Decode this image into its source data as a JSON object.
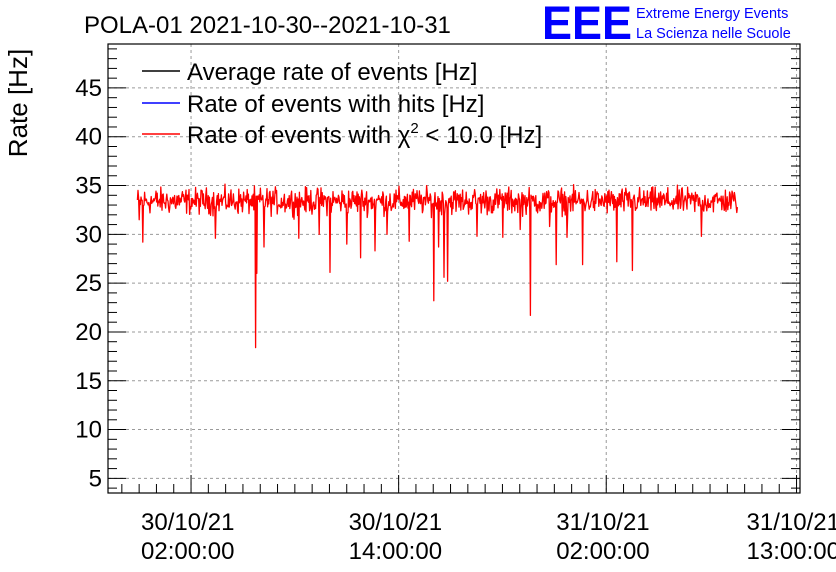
{
  "title": "POLA-01 2021-10-30--2021-10-31",
  "logo": {
    "mark": "EEE",
    "line1": "Extreme Energy Events",
    "line2": "La Scienza nelle Scuole",
    "color": "#0000ff"
  },
  "chart_data": {
    "type": "line",
    "title": "POLA-01 2021-10-30--2021-10-31",
    "ylabel": "Rate [Hz]",
    "xlabel": "",
    "ylim": [
      3.5,
      49.5
    ],
    "xlim_hours": [
      -4.8,
      35.2
    ],
    "grid": true,
    "legend": "top-left",
    "y_ticks": [
      5,
      10,
      15,
      20,
      25,
      30,
      35,
      40,
      45
    ],
    "x_ticks": [
      {
        "hours": 0,
        "date": "30/10/21",
        "time": "02:00:00"
      },
      {
        "hours": 12,
        "date": "30/10/21",
        "time": "14:00:00"
      },
      {
        "hours": 24,
        "date": "31/10/21",
        "time": "02:00:00"
      },
      {
        "hours": 35,
        "date": "31/10/21",
        "time": "13:00:00"
      }
    ],
    "legend_entries": [
      {
        "label": "Average rate of events [Hz]",
        "color": "#000000"
      },
      {
        "label": "Rate of events with hits [Hz]",
        "color": "#0000ff"
      },
      {
        "label_prefix": "Rate of events with ",
        "label_symbol": "χ",
        "label_sup": "2",
        "label_suffix": " < 10.0 [Hz]",
        "color": "#ff0000"
      }
    ],
    "series": [
      {
        "name": "Rate of events with chi2 < 10.0 [Hz]",
        "color": "#ff0000",
        "x_start_hours": -3.1,
        "x_end_hours": 31.6,
        "baseline": 33.4,
        "noise_amplitude": 1.3,
        "dips": [
          {
            "hours": -3.0,
            "value": 31.5
          },
          {
            "hours": -2.8,
            "value": 29.2
          },
          {
            "hours": 1.4,
            "value": 29.6
          },
          {
            "hours": 3.7,
            "value": 18.4
          },
          {
            "hours": 3.8,
            "value": 26.0
          },
          {
            "hours": 4.2,
            "value": 28.7
          },
          {
            "hours": 6.2,
            "value": 29.6
          },
          {
            "hours": 7.4,
            "value": 30.0
          },
          {
            "hours": 8.0,
            "value": 26.1
          },
          {
            "hours": 9.0,
            "value": 29.0
          },
          {
            "hours": 9.8,
            "value": 27.6
          },
          {
            "hours": 10.6,
            "value": 28.3
          },
          {
            "hours": 11.3,
            "value": 30.0
          },
          {
            "hours": 12.6,
            "value": 29.3
          },
          {
            "hours": 14.0,
            "value": 23.2
          },
          {
            "hours": 14.3,
            "value": 28.7
          },
          {
            "hours": 14.6,
            "value": 25.6
          },
          {
            "hours": 14.8,
            "value": 25.2
          },
          {
            "hours": 16.5,
            "value": 29.8
          },
          {
            "hours": 18.0,
            "value": 29.7
          },
          {
            "hours": 19.0,
            "value": 30.5
          },
          {
            "hours": 19.6,
            "value": 21.7
          },
          {
            "hours": 20.7,
            "value": 30.8
          },
          {
            "hours": 21.1,
            "value": 26.9
          },
          {
            "hours": 21.7,
            "value": 29.7
          },
          {
            "hours": 22.6,
            "value": 26.9
          },
          {
            "hours": 24.6,
            "value": 27.2
          },
          {
            "hours": 25.5,
            "value": 26.3
          },
          {
            "hours": 29.5,
            "value": 29.8
          }
        ]
      }
    ]
  }
}
